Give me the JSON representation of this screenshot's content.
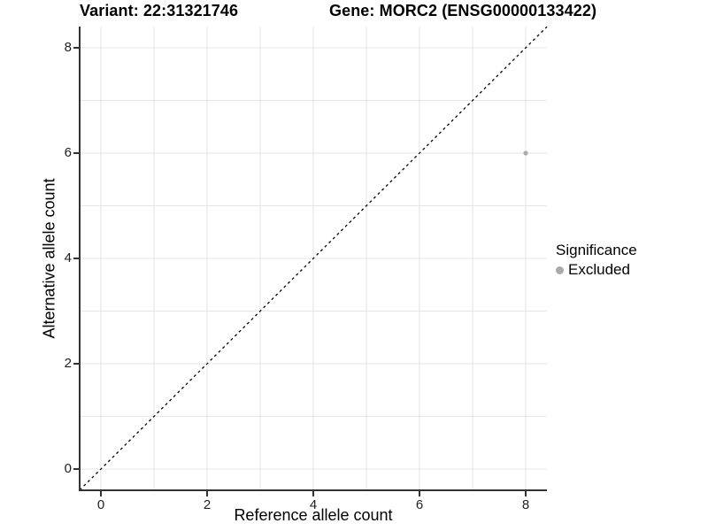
{
  "titles": {
    "variant": "Variant: 22:31321746",
    "gene": "Gene: MORC2 (ENSG00000133422)"
  },
  "legend": {
    "title": "Significance",
    "items": [
      {
        "label": "Excluded",
        "color": "#aaaaaa"
      }
    ]
  },
  "chart_data": {
    "type": "scatter",
    "title_left": "Variant: 22:31321746",
    "title_right": "Gene: MORC2 (ENSG00000133422)",
    "xlabel": "Reference allele count",
    "ylabel": "Alternative allele count",
    "xlim": [
      -0.4,
      8.4
    ],
    "ylim": [
      -0.4,
      8.4
    ],
    "x_ticks": [
      0,
      2,
      4,
      6,
      8
    ],
    "y_ticks": [
      0,
      2,
      4,
      6,
      8
    ],
    "x_tick_labels": [
      "0",
      "2",
      "4",
      "6",
      "8"
    ],
    "y_tick_labels": [
      "0",
      "2",
      "4",
      "6",
      "8"
    ],
    "grid_values": [
      0,
      1,
      2,
      3,
      4,
      5,
      6,
      7,
      8
    ],
    "grid": true,
    "legend_position": "right",
    "legend_title": "Significance",
    "series": [
      {
        "name": "Excluded",
        "color": "#aaaaaa",
        "points": [
          {
            "x": 8,
            "y": 6
          }
        ]
      }
    ],
    "reference_line": {
      "type": "identity",
      "slope": 1,
      "intercept": 0,
      "style": "dashed",
      "color": "#000000"
    },
    "colors": {
      "point_excluded": "#aaaaaa",
      "grid_line": "#e6e6e6",
      "axis_line": "#333333",
      "background": "#ffffff"
    }
  }
}
